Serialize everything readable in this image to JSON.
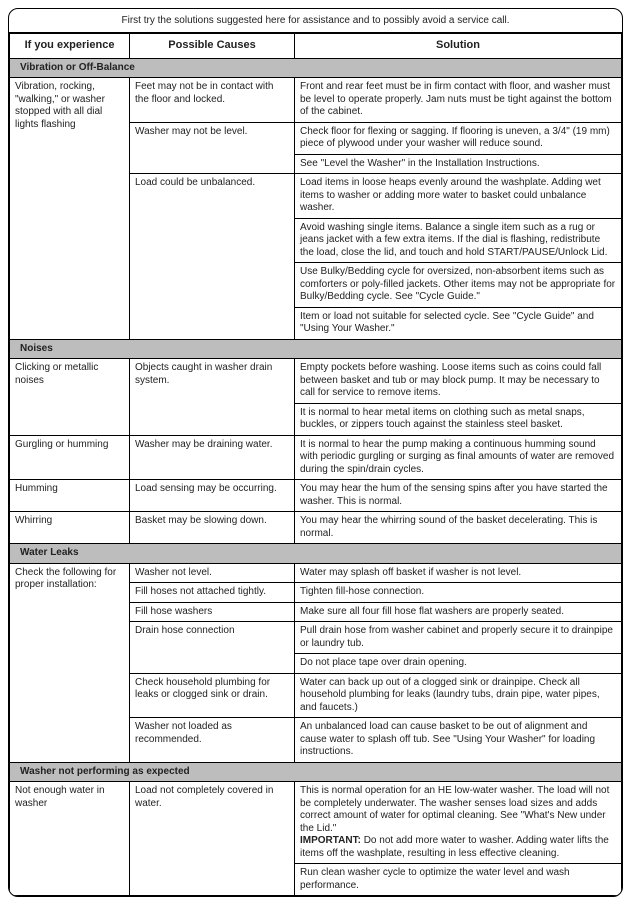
{
  "intro": "First try the solutions suggested here for assistance and to possibly avoid a service call.",
  "headers": {
    "experience": "If you experience",
    "causes": "Possible Causes",
    "solution": "Solution"
  },
  "sections": [
    {
      "title": "Vibration or Off-Balance",
      "groups": [
        {
          "experience": "Vibration, rocking, \"walking,\" or washer stopped with all dial lights flashing",
          "causes": [
            {
              "cause": "Feet may not be in contact with the floor and locked.",
              "solutions": [
                "Front and rear feet must be in firm contact with floor, and washer must be level to operate properly. Jam nuts must be tight against the bottom of the cabinet."
              ]
            },
            {
              "cause": "Washer may not be level.",
              "solutions": [
                "Check floor for flexing or sagging. If flooring is uneven, a 3/4\" (19 mm) piece of plywood under your washer will reduce sound.",
                "See \"Level the Washer\" in the Installation Instructions."
              ]
            },
            {
              "cause": "Load could be unbalanced.",
              "solutions": [
                "Load items in loose heaps evenly around the washplate. Adding wet items to washer or adding more water to basket could unbalance washer.",
                "Avoid washing single items. Balance a single item such as a rug or jeans jacket with a few extra items. If the dial is flashing, redistribute the load, close the lid, and touch and hold START/PAUSE/Unlock Lid.",
                "Use Bulky/Bedding cycle for oversized, non-absorbent items such as comforters or poly-filled jackets. Other items may not be appropriate for Bulky/Bedding cycle. See \"Cycle Guide.\"",
                "Item or load not suitable for selected cycle. See \"Cycle Guide\" and \"Using Your Washer.\""
              ]
            }
          ]
        }
      ]
    },
    {
      "title": "Noises",
      "groups": [
        {
          "experience": "Clicking or metallic noises",
          "causes": [
            {
              "cause": "Objects caught in washer drain system.",
              "solutions": [
                "Empty pockets before washing. Loose items such as coins could fall between basket and tub or may block pump. It may be necessary to call for service to remove items.",
                "It is normal to hear metal items on clothing such as metal snaps, buckles, or zippers touch against the stainless steel basket."
              ]
            }
          ]
        },
        {
          "experience": "Gurgling or humming",
          "causes": [
            {
              "cause": "Washer may be draining water.",
              "solutions": [
                "It is normal to hear the pump making a continuous humming sound with periodic gurgling or surging as final amounts of water are removed during the spin/drain cycles."
              ]
            }
          ]
        },
        {
          "experience": "Humming",
          "causes": [
            {
              "cause": "Load sensing may be occurring.",
              "solutions": [
                "You may hear the hum of the sensing spins after you have started the washer. This is normal."
              ]
            }
          ]
        },
        {
          "experience": "Whirring",
          "causes": [
            {
              "cause": "Basket may be slowing down.",
              "solutions": [
                "You may hear the whirring sound of the basket decelerating. This is normal."
              ]
            }
          ]
        }
      ]
    },
    {
      "title": "Water Leaks",
      "groups": [
        {
          "experience": "Check the following for proper installation:",
          "causes": [
            {
              "cause": "Washer not level.",
              "solutions": [
                "Water may splash off basket if washer is not level."
              ]
            },
            {
              "cause": "Fill hoses not attached tightly.",
              "solutions": [
                "Tighten fill-hose connection."
              ]
            },
            {
              "cause": "Fill hose washers",
              "solutions": [
                "Make sure all four fill hose flat washers are properly seated."
              ]
            },
            {
              "cause": "Drain hose connection",
              "solutions": [
                "Pull drain hose from washer cabinet and properly secure it to drainpipe or laundry tub.",
                "Do not place tape over drain opening."
              ]
            },
            {
              "cause": "Check household plumbing for leaks or clogged sink or drain.",
              "solutions": [
                "Water can back up out of a clogged sink or drainpipe. Check all household plumbing for leaks (laundry tubs, drain pipe, water pipes, and faucets.)"
              ]
            },
            {
              "cause": "Washer not loaded as recommended.",
              "solutions": [
                "An unbalanced load can cause basket to be out of alignment and cause water to splash off tub. See \"Using Your Washer\" for loading instructions."
              ]
            }
          ]
        }
      ]
    },
    {
      "title": "Washer not performing as expected",
      "groups": [
        {
          "experience": "Not enough water in washer",
          "causes": [
            {
              "cause": "Load not completely covered in water.",
              "solutions": [
                {
                  "pre": "This is normal operation for an HE low-water washer. The load will not be completely underwater. The washer senses load sizes and adds correct amount of water for optimal cleaning. See \"What's New under the Lid.\"",
                  "imp_label": "IMPORTANT:",
                  "imp_text": " Do not add more water to washer. Adding water lifts the items off the washplate, resulting in less effective cleaning."
                },
                "Run clean washer cycle to optimize the water level and wash performance."
              ]
            }
          ]
        }
      ]
    }
  ]
}
